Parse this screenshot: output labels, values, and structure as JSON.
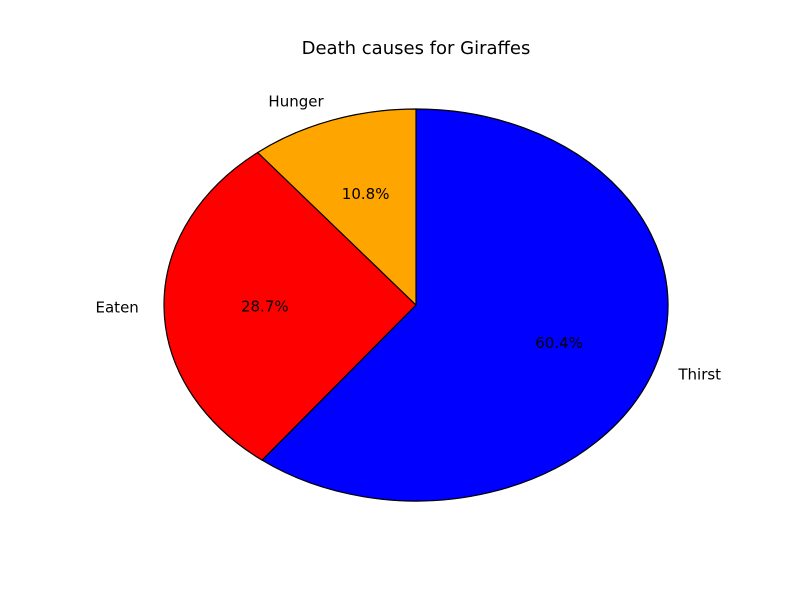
{
  "chart_data": {
    "type": "pie",
    "title": "Death causes for Giraffes",
    "start_angle_deg": 90,
    "direction": "clockwise",
    "slices": [
      {
        "label": "Thirst",
        "value": 60.4,
        "pct_text": "60.4%",
        "color": "#0000ff"
      },
      {
        "label": "Eaten",
        "value": 28.7,
        "pct_text": "28.7%",
        "color": "#ff0000"
      },
      {
        "label": "Hunger",
        "value": 10.8,
        "pct_text": "10.8%",
        "color": "#ffa500"
      }
    ]
  }
}
